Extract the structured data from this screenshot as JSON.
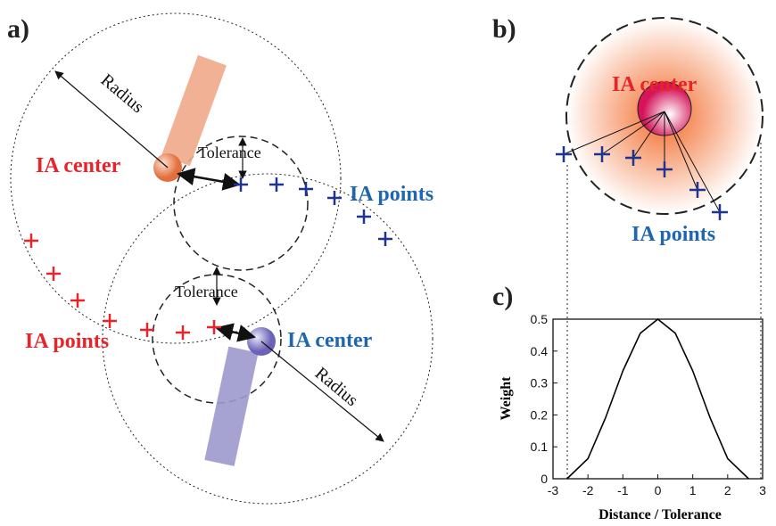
{
  "panels": {
    "a": {
      "label": "a)",
      "radius_top": "Radius",
      "radius_bottom": "Radius",
      "tolerance_top": "Tolerance",
      "tolerance_bottom": "Tolerance",
      "center_red": "IA center",
      "center_blue": "IA center",
      "points_red": "IA points",
      "points_blue": "IA points"
    },
    "b": {
      "label": "b)",
      "center": "IA center",
      "points": "IA points"
    },
    "c": {
      "label": "c)"
    }
  },
  "chart_data": {
    "type": "line",
    "xlabel": "Distance / Tolerance",
    "ylabel": "Weight",
    "x": [
      -2.6,
      -2,
      -1.5,
      -1,
      -0.5,
      0,
      0.5,
      1,
      1.5,
      2,
      2.6
    ],
    "series": [
      {
        "color": "#000000",
        "values": [
          0,
          0.063,
          0.19,
          0.338,
          0.456,
          0.5,
          0.456,
          0.338,
          0.19,
          0.063,
          0
        ]
      }
    ],
    "xlim": [
      -3,
      3
    ],
    "ylim": [
      0,
      0.5
    ],
    "xticks": [
      -3,
      -2,
      -1,
      0,
      1,
      2,
      3
    ],
    "yticks": [
      0,
      0.1,
      0.2,
      0.3,
      0.4,
      0.5
    ]
  }
}
